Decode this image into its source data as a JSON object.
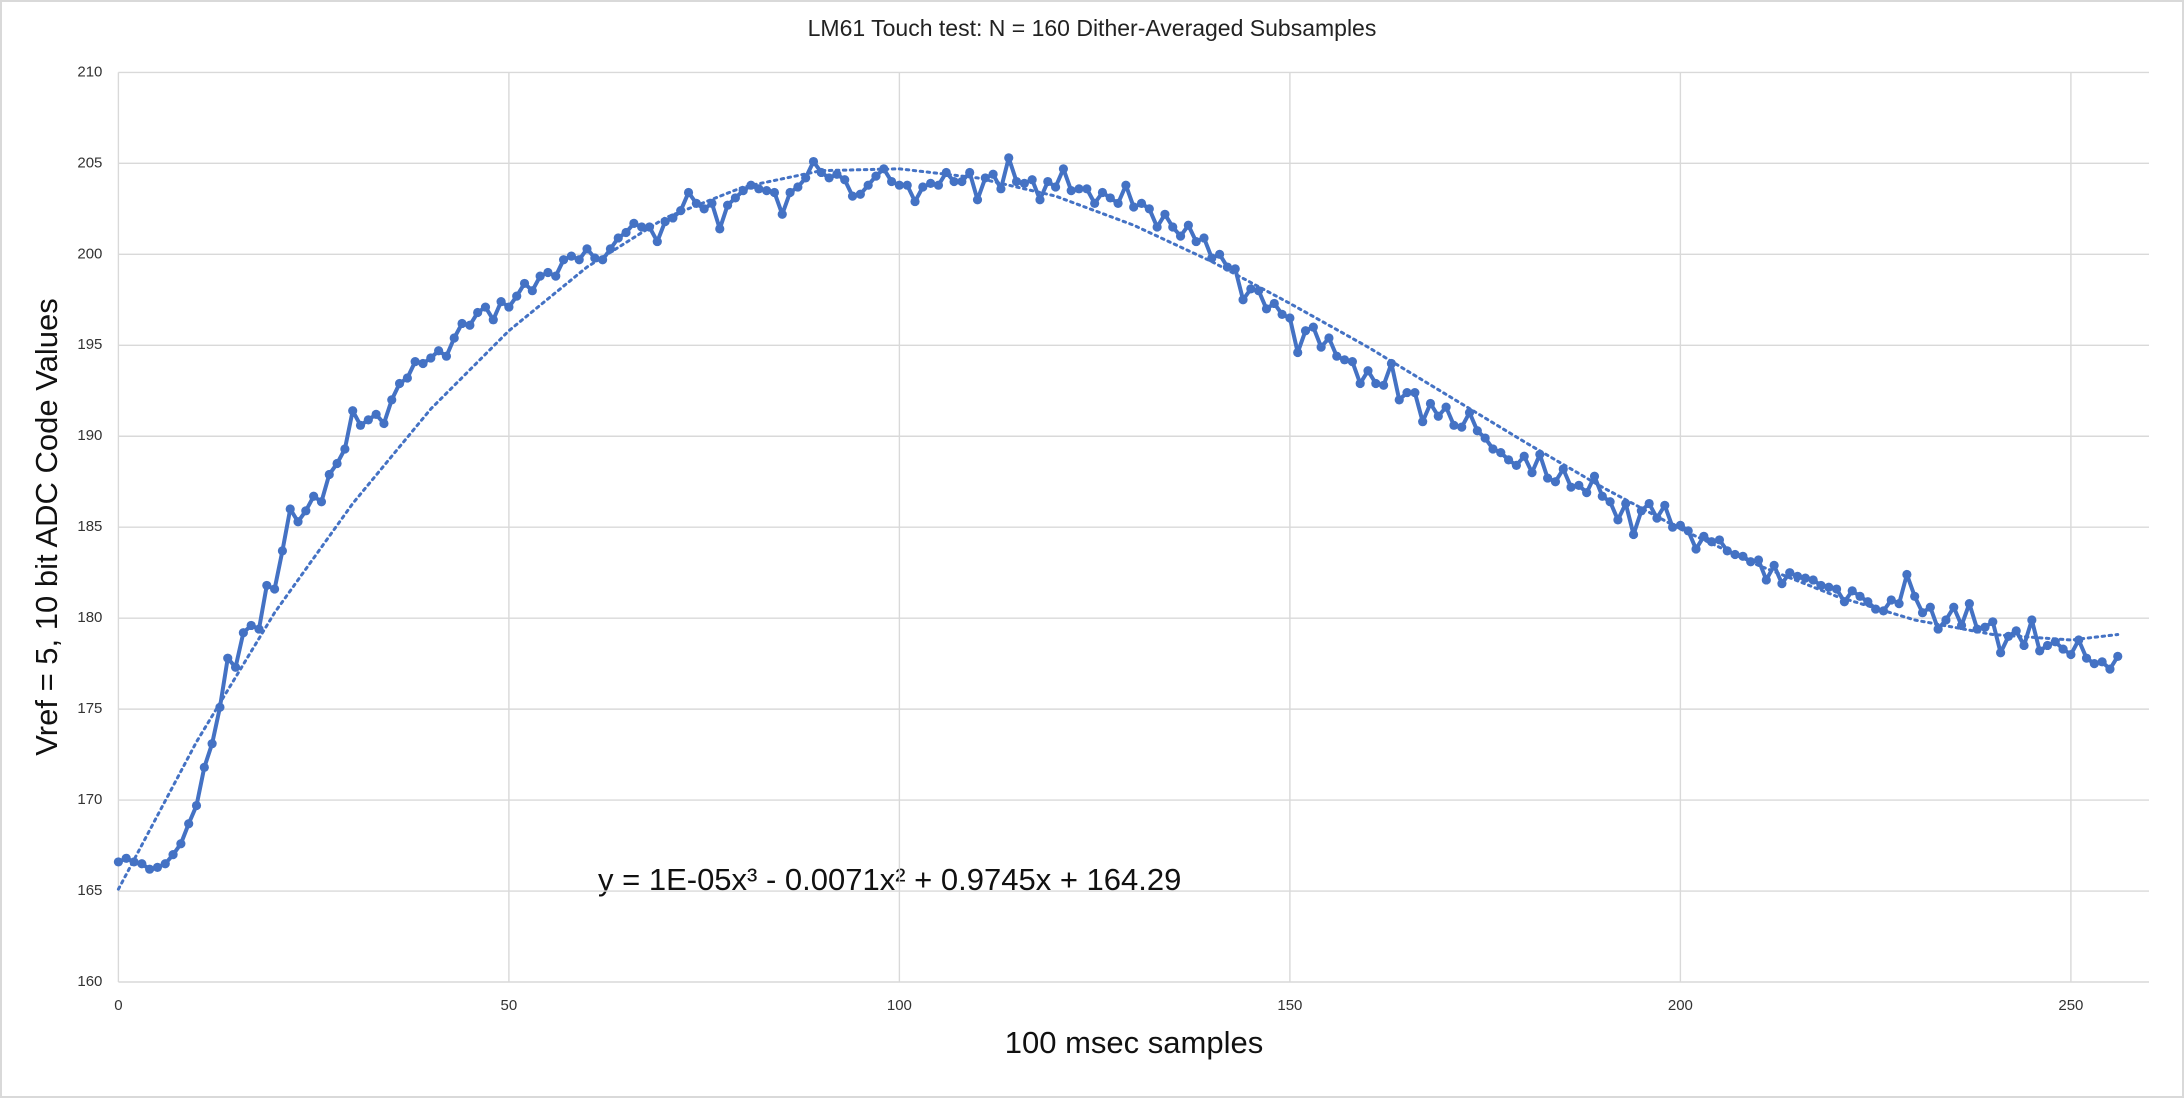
{
  "chart_data": {
    "type": "line",
    "title": "LM61 Touch test: N = 160 Dither-Averaged Subsamples",
    "x_label": "100 msec samples",
    "y_label": "Vref = 5, 10 bit ADC Code Values",
    "annotation": "y = 1E-05x³ - 0.0071x² + 0.9745x + 164.29",
    "xlim": [
      0,
      260
    ],
    "ylim": [
      160,
      210
    ],
    "xticks": [
      0,
      50,
      100,
      150,
      200,
      250
    ],
    "yticks": [
      160,
      165,
      170,
      175,
      180,
      185,
      190,
      195,
      200,
      205,
      210
    ],
    "grid": true,
    "series": [
      {
        "color": "#4472c4",
        "markers": true,
        "line_style": "solid",
        "x": [
          0,
          1,
          2,
          3,
          4,
          5,
          6,
          7,
          8,
          9,
          10,
          11,
          12,
          13,
          14,
          15,
          16,
          17,
          18,
          19,
          20,
          21,
          22,
          23,
          24,
          25,
          26,
          27,
          28,
          29,
          30,
          31,
          32,
          33,
          34,
          35,
          36,
          37,
          38,
          39,
          40,
          41,
          42,
          43,
          44,
          45,
          46,
          47,
          48,
          49,
          50,
          51,
          52,
          53,
          54,
          55,
          56,
          57,
          58,
          59,
          60,
          61,
          62,
          63,
          64,
          65,
          66,
          67,
          68,
          69,
          70,
          71,
          72,
          73,
          74,
          75,
          76,
          77,
          78,
          79,
          80,
          81,
          82,
          83,
          84,
          85,
          86,
          87,
          88,
          89,
          90,
          91,
          92,
          93,
          94,
          95,
          96,
          97,
          98,
          99,
          100,
          101,
          102,
          103,
          104,
          105,
          106,
          107,
          108,
          109,
          110,
          111,
          112,
          113,
          114,
          115,
          116,
          117,
          118,
          119,
          120,
          121,
          122,
          123,
          124,
          125,
          126,
          127,
          128,
          129,
          130,
          131,
          132,
          133,
          134,
          135,
          136,
          137,
          138,
          139,
          140,
          141,
          142,
          143,
          144,
          145,
          146,
          147,
          148,
          149,
          150,
          151,
          152,
          153,
          154,
          155,
          156,
          157,
          158,
          159,
          160,
          161,
          162,
          163,
          164,
          165,
          166,
          167,
          168,
          169,
          170,
          171,
          172,
          173,
          174,
          175,
          176,
          177,
          178,
          179,
          180,
          181,
          182,
          183,
          184,
          185,
          186,
          187,
          188,
          189,
          190,
          191,
          192,
          193,
          194,
          195,
          196,
          197,
          198,
          199,
          200,
          201,
          202,
          203,
          204,
          205,
          206,
          207,
          208,
          209,
          210,
          211,
          212,
          213,
          214,
          215,
          216,
          217,
          218,
          219,
          220,
          221,
          222,
          223,
          224,
          225,
          226,
          227,
          228,
          229,
          230,
          231,
          232,
          233,
          234,
          235,
          236,
          237,
          238,
          239,
          240,
          241,
          242,
          243,
          244,
          245,
          246,
          247,
          248,
          249,
          250,
          251,
          252,
          253,
          254,
          255,
          256
        ],
        "values": [
          166.6,
          166.8,
          166.6,
          166.5,
          166.2,
          166.3,
          166.5,
          167.0,
          167.6,
          168.7,
          169.7,
          171.8,
          173.1,
          175.1,
          177.8,
          177.3,
          179.2,
          179.6,
          179.4,
          181.8,
          181.6,
          183.7,
          186.0,
          185.3,
          185.9,
          186.7,
          186.4,
          187.9,
          188.5,
          189.3,
          191.4,
          190.6,
          190.9,
          191.2,
          190.7,
          192.0,
          192.9,
          193.2,
          194.1,
          194.0,
          194.3,
          194.7,
          194.4,
          195.4,
          196.2,
          196.1,
          196.8,
          197.1,
          196.4,
          197.4,
          197.1,
          197.7,
          198.4,
          198.0,
          198.8,
          199.0,
          198.8,
          199.7,
          199.9,
          199.7,
          200.3,
          199.8,
          199.7,
          200.3,
          200.9,
          201.2,
          201.7,
          201.5,
          201.5,
          200.7,
          201.8,
          202.0,
          202.4,
          203.4,
          202.8,
          202.5,
          202.8,
          201.4,
          202.7,
          203.1,
          203.5,
          203.8,
          203.6,
          203.5,
          203.4,
          202.2,
          203.4,
          203.7,
          204.2,
          205.1,
          204.5,
          204.2,
          204.4,
          204.1,
          203.2,
          203.3,
          203.8,
          204.3,
          204.7,
          204.0,
          203.8,
          203.8,
          202.9,
          203.7,
          203.9,
          203.8,
          204.5,
          204.0,
          204.0,
          204.5,
          203.0,
          204.2,
          204.4,
          203.6,
          205.3,
          204.0,
          203.9,
          204.1,
          203.0,
          204.0,
          203.7,
          204.7,
          203.5,
          203.6,
          203.6,
          202.8,
          203.4,
          203.1,
          202.8,
          203.8,
          202.6,
          202.8,
          202.5,
          201.5,
          202.2,
          201.5,
          201.0,
          201.6,
          200.7,
          200.9,
          199.8,
          200.0,
          199.3,
          199.2,
          197.5,
          198.1,
          198.0,
          197.0,
          197.3,
          196.7,
          196.5,
          194.6,
          195.8,
          196.0,
          194.9,
          195.4,
          194.4,
          194.2,
          194.1,
          192.9,
          193.6,
          192.9,
          192.8,
          194.0,
          192.0,
          192.4,
          192.4,
          190.8,
          191.8,
          191.1,
          191.6,
          190.6,
          190.5,
          191.3,
          190.3,
          189.9,
          189.3,
          189.1,
          188.7,
          188.4,
          188.9,
          188.0,
          189.0,
          187.7,
          187.5,
          188.2,
          187.2,
          187.3,
          186.9,
          187.8,
          186.7,
          186.4,
          185.4,
          186.3,
          184.6,
          185.9,
          186.3,
          185.5,
          186.2,
          185.0,
          185.1,
          184.8,
          183.8,
          184.5,
          184.2,
          184.3,
          183.7,
          183.5,
          183.4,
          183.1,
          183.2,
          182.1,
          182.9,
          181.9,
          182.5,
          182.3,
          182.2,
          182.1,
          181.8,
          181.7,
          181.6,
          180.9,
          181.5,
          181.2,
          180.9,
          180.5,
          180.4,
          181.0,
          180.8,
          182.4,
          181.2,
          180.3,
          180.6,
          179.4,
          179.9,
          180.6,
          179.6,
          180.8,
          179.4,
          179.5,
          179.8,
          178.1,
          179.0,
          179.3,
          178.5,
          179.9,
          178.2,
          178.5,
          178.7,
          178.3,
          178.0,
          178.8,
          177.8,
          177.5,
          177.6,
          177.2,
          177.9
        ]
      },
      {
        "color": "#4472c4",
        "markers": false,
        "line_style": "dotted",
        "x": [
          0,
          10,
          20,
          30,
          40,
          50,
          60,
          70,
          80,
          90,
          100,
          110,
          120,
          130,
          140,
          150,
          160,
          170,
          180,
          190,
          200,
          210,
          220,
          230,
          240,
          250,
          256
        ],
        "values": [
          165.1,
          173.2,
          180.3,
          186.3,
          191.5,
          195.8,
          199.3,
          202.0,
          203.7,
          204.6,
          204.7,
          204.2,
          203.2,
          201.6,
          199.6,
          197.3,
          194.9,
          192.3,
          189.7,
          187.2,
          184.9,
          182.9,
          181.2,
          179.9,
          179.1,
          178.8,
          179.1
        ]
      }
    ]
  }
}
